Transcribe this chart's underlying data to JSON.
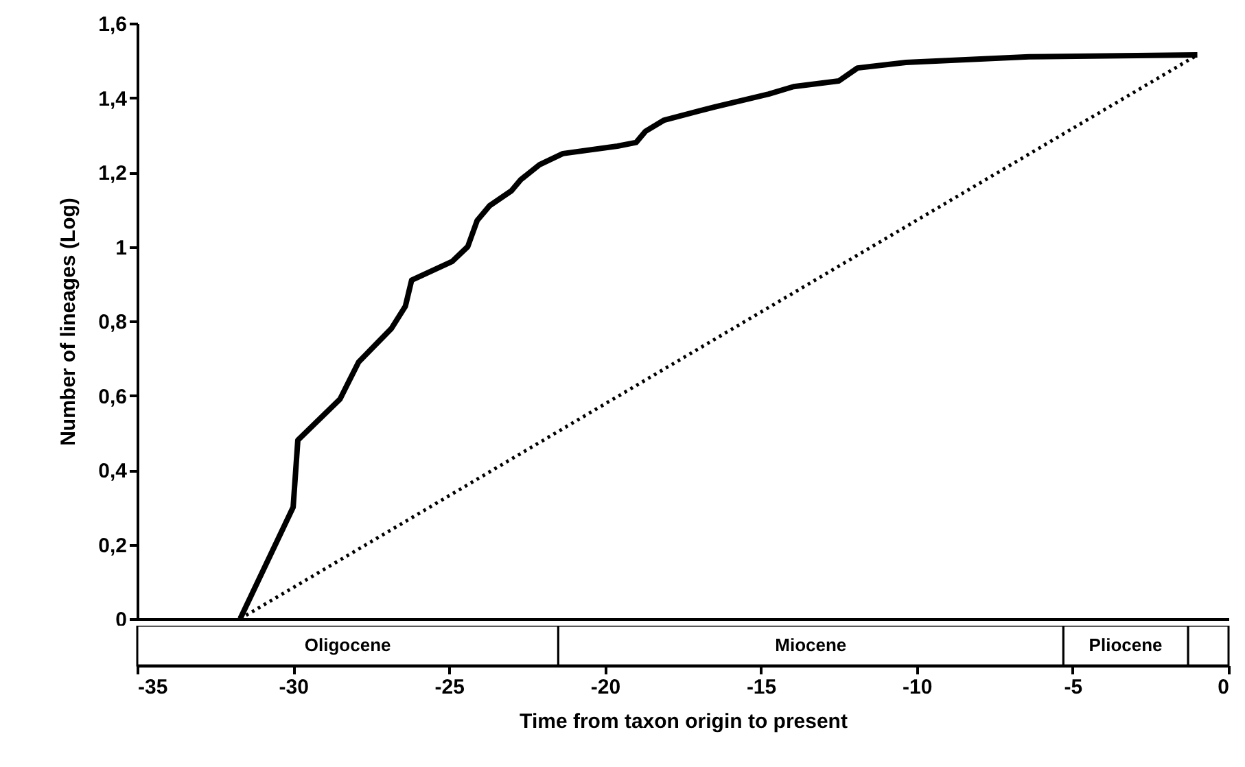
{
  "chart_data": [
    {
      "type": "line",
      "ylabel": "Number of lineages (Log)",
      "xlim": [
        -35,
        0
      ],
      "ylim": [
        0,
        1.6
      ],
      "yticks": [
        0,
        {
          "value": 0.2,
          "label": "0,2"
        },
        {
          "value": 0.4,
          "label": "0,4"
        },
        {
          "value": 0.6,
          "label": "0,6"
        },
        {
          "value": 0.8,
          "label": "0,8"
        },
        1,
        {
          "value": 1.2,
          "label": "1,2"
        },
        {
          "value": 1.4,
          "label": "1,4"
        },
        {
          "value": 1.6,
          "label": "1,6"
        }
      ],
      "tick_labels": "y",
      "marker": "none",
      "series": [
        {
          "color": "#000000",
          "line_style": "solid",
          "x": [
            -31.7,
            -30.0,
            -29.85,
            -28.5,
            -27.9,
            -26.85,
            -26.4,
            -26.2,
            -24.9,
            -24.4,
            -24.1,
            -23.7,
            -23.0,
            -22.7,
            -22.1,
            -21.35,
            -19.6,
            -19.0,
            -18.7,
            -18.1,
            -16.5,
            -14.75,
            -13.95,
            -12.5,
            -11.9,
            -10.35,
            -6.4,
            -1.0
          ],
          "values": [
            0,
            0.3,
            0.48,
            0.59,
            0.69,
            0.78,
            0.84,
            0.91,
            0.96,
            1.0,
            1.07,
            1.11,
            1.15,
            1.18,
            1.22,
            1.25,
            1.27,
            1.28,
            1.31,
            1.34,
            1.375,
            1.41,
            1.43,
            1.445,
            1.48,
            1.495,
            1.51,
            1.515
          ]
        },
        {
          "color": "#000000",
          "line_style": "dotted",
          "x": [
            -31.7,
            -1.0
          ],
          "values": [
            0,
            1.515
          ]
        }
      ]
    },
    {
      "type": "bar",
      "orientation": "horizontal",
      "stacked": true,
      "categories": [
        null
      ],
      "xlabel": "Time from taxon origin to present",
      "xlim": [
        -35,
        0
      ],
      "xticks": [
        -35,
        -30,
        -25,
        -20,
        -15,
        -10,
        -5,
        0
      ],
      "tick_labels": "x",
      "series": [
        {
          "color": "#ffffff",
          "values": [
            -1.3
          ]
        },
        {
          "name": "Pliocene",
          "color": "#ffffff",
          "values": [
            -4.0
          ]
        },
        {
          "name": "Miocene",
          "color": "#ffffff",
          "values": [
            -16.2
          ]
        },
        {
          "name": "Oligocene",
          "color": "#ffffff",
          "values": [
            -13.5
          ]
        }
      ]
    }
  ]
}
